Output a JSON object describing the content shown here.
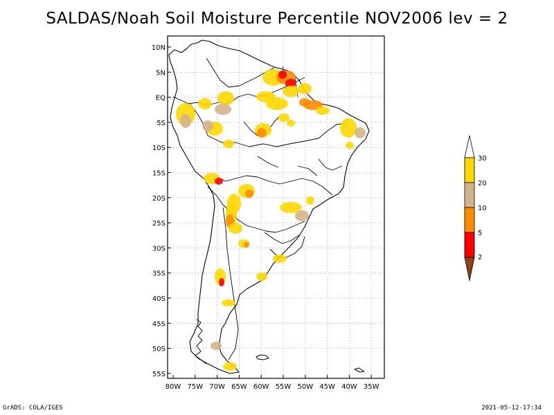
{
  "title": "SALDAS/Noah Soil Moisture Percentile NOV2006 lev = 2",
  "map": {
    "lat_ticks": [
      "10N",
      "5N",
      "EQ",
      "5S",
      "10S",
      "15S",
      "20S",
      "25S",
      "30S",
      "35S",
      "40S",
      "45S",
      "50S",
      "55S"
    ],
    "lon_ticks": [
      "80W",
      "75W",
      "70W",
      "65W",
      "60W",
      "55W",
      "50W",
      "45W",
      "40W",
      "35W"
    ]
  },
  "legend": {
    "labels": [
      "30",
      "20",
      "10",
      "5",
      "2"
    ],
    "colors": {
      "above_30": "#ffffff",
      "20_30": "#ffd700",
      "10_20": "#d2b48c",
      "5_10": "#ff8c00",
      "2_5": "#ff0000",
      "below_2": "#8b4513"
    }
  },
  "footer": {
    "left": "GrADS: COLA/IGES",
    "right": "2021-05-12-17:34"
  }
}
